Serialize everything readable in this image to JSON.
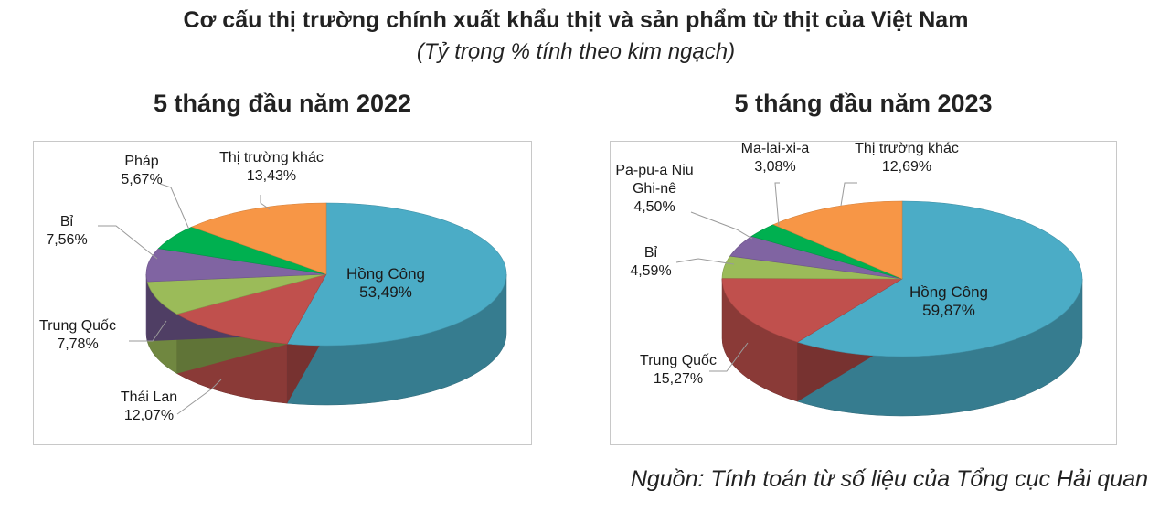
{
  "title": "Cơ cấu thị trường chính xuất khẩu thịt và sản phẩm từ thịt của Việt Nam",
  "subtitle": "(Tỷ trọng % tính theo kim ngạch)",
  "source": "Nguồn: Tính toán từ số liệu của Tổng cục Hải quan",
  "colors": {
    "blue": "#4BACC6",
    "red": "#C0504D",
    "green_light": "#9BBB59",
    "purple": "#8064A2",
    "green": "#00B050",
    "orange": "#F79646"
  },
  "chart_data": [
    {
      "type": "pie",
      "title": "5 tháng đầu năm 2022",
      "slices": [
        {
          "label": "Hồng Công",
          "value": 53.49,
          "value_text": "53,49%",
          "color": "#4BACC6"
        },
        {
          "label": "Thái Lan",
          "value": 12.07,
          "value_text": "12,07%",
          "color": "#C0504D"
        },
        {
          "label": "Trung Quốc",
          "value": 7.78,
          "value_text": "7,78%",
          "color": "#9BBB59"
        },
        {
          "label": "Bỉ",
          "value": 7.56,
          "value_text": "7,56%",
          "color": "#8064A2"
        },
        {
          "label": "Pháp",
          "value": 5.67,
          "value_text": "5,67%",
          "color": "#00B050"
        },
        {
          "label": "Thị trường khác",
          "value": 13.43,
          "value_text": "13,43%",
          "color": "#F79646"
        }
      ]
    },
    {
      "type": "pie",
      "title": "5 tháng đầu năm 2023",
      "slices": [
        {
          "label": "Hồng Công",
          "value": 59.87,
          "value_text": "59,87%",
          "color": "#4BACC6"
        },
        {
          "label": "Trung Quốc",
          "value": 15.27,
          "value_text": "15,27%",
          "color": "#C0504D"
        },
        {
          "label": "Bỉ",
          "value": 4.59,
          "value_text": "4,59%",
          "color": "#9BBB59"
        },
        {
          "label": "Pa-pu-a Niu Ghi-nê",
          "value": 4.5,
          "value_text": "4,50%",
          "color": "#8064A2"
        },
        {
          "label": "Ma-lai-xi-a",
          "value": 3.08,
          "value_text": "3,08%",
          "color": "#00B050"
        },
        {
          "label": "Thị trường khác",
          "value": 12.69,
          "value_text": "12,69%",
          "color": "#F79646"
        }
      ]
    }
  ]
}
